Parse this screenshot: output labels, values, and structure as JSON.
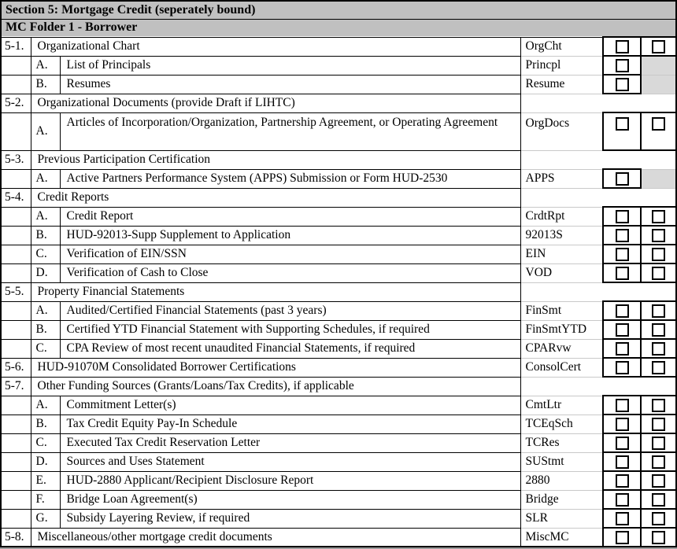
{
  "page": {
    "section_header": "Section 5: Mortgage Credit (seperately bound)",
    "folder_header": "MC Folder 1 - Borrower"
  },
  "colors": {
    "header_bg": "#C0C0C0",
    "shaded_cell": "#D9D9D9",
    "faint_gridline": "#C9C9C9",
    "border": "#000000"
  },
  "checkbox_legend": {
    "box": "empty checkbox present",
    "shaded": "gray shaded cell, no checkbox"
  },
  "rows": [
    {
      "id": "5-1",
      "type": "item",
      "num": "5-1.",
      "desc": "Organizational Chart",
      "code": "OrgCht",
      "checks": [
        "box",
        "box"
      ]
    },
    {
      "id": "5-1-A",
      "type": "sub",
      "letter": "A.",
      "desc": "List of Principals",
      "code": "Princpl",
      "checks": [
        "box",
        "shaded"
      ]
    },
    {
      "id": "5-1-B",
      "type": "sub",
      "letter": "B.",
      "desc": "Resumes",
      "code": "Resume",
      "checks": [
        "box",
        "shaded"
      ]
    },
    {
      "id": "5-2",
      "type": "section",
      "num": "5-2.",
      "desc": "Organizational Documents (provide Draft if LIHTC)"
    },
    {
      "id": "5-2-A",
      "type": "sub",
      "tall": true,
      "letter": "A.",
      "desc": "Articles of Incorporation/Organization, Partnership Agreement, or Operating Agreement",
      "code": "OrgDocs",
      "checks": [
        "box",
        "box"
      ]
    },
    {
      "id": "5-3",
      "type": "section",
      "num": "5-3.",
      "desc": "Previous Participation Certification"
    },
    {
      "id": "5-3-A",
      "type": "sub",
      "letter": "A.",
      "desc": "Active Partners Performance System (APPS) Submission or Form HUD-2530",
      "code": "APPS",
      "checks": [
        "box",
        "shaded"
      ]
    },
    {
      "id": "5-4",
      "type": "section",
      "num": "5-4.",
      "desc": "Credit Reports"
    },
    {
      "id": "5-4-A",
      "type": "sub",
      "letter": "A.",
      "desc": "Credit Report",
      "code": "CrdtRpt",
      "checks": [
        "box",
        "box"
      ]
    },
    {
      "id": "5-4-B",
      "type": "sub",
      "letter": "B.",
      "desc": "HUD-92013-Supp Supplement to Application",
      "code": "92013S",
      "checks": [
        "box",
        "box"
      ]
    },
    {
      "id": "5-4-C",
      "type": "sub",
      "letter": "C.",
      "desc": "Verification of EIN/SSN",
      "code": "EIN",
      "checks": [
        "box",
        "box"
      ]
    },
    {
      "id": "5-4-D",
      "type": "sub",
      "letter": "D.",
      "desc": "Verification of Cash to Close",
      "code": "VOD",
      "checks": [
        "box",
        "box"
      ]
    },
    {
      "id": "5-5",
      "type": "section",
      "num": "5-5.",
      "desc": "Property Financial Statements"
    },
    {
      "id": "5-5-A",
      "type": "sub",
      "letter": "A.",
      "desc": "Audited/Certified Financial Statements (past 3 years)",
      "code": "FinSmt",
      "checks": [
        "box",
        "box"
      ]
    },
    {
      "id": "5-5-B",
      "type": "sub",
      "letter": "B.",
      "desc": "Certified YTD Financial Statement with Supporting Schedules, if required",
      "code": "FinSmtYTD",
      "checks": [
        "box",
        "box"
      ]
    },
    {
      "id": "5-5-C",
      "type": "sub",
      "letter": "C.",
      "desc": "CPA Review of most recent unaudited Financial Statements, if required",
      "code": "CPARvw",
      "checks": [
        "box",
        "box"
      ]
    },
    {
      "id": "5-6",
      "type": "item",
      "num": "5-6.",
      "desc": "HUD-91070M Consolidated Borrower Certifications",
      "code": "ConsolCert",
      "checks": [
        "box",
        "box"
      ]
    },
    {
      "id": "5-7",
      "type": "section",
      "num": "5-7.",
      "desc": "Other Funding Sources (Grants/Loans/Tax Credits), if applicable"
    },
    {
      "id": "5-7-A",
      "type": "sub",
      "letter": "A.",
      "desc": "Commitment Letter(s)",
      "code": "CmtLtr",
      "checks": [
        "box",
        "box"
      ]
    },
    {
      "id": "5-7-B",
      "type": "sub",
      "letter": "B.",
      "desc": "Tax Credit Equity Pay-In Schedule",
      "code": "TCEqSch",
      "checks": [
        "box",
        "box"
      ]
    },
    {
      "id": "5-7-C",
      "type": "sub",
      "letter": "C.",
      "desc": "Executed Tax Credit Reservation Letter",
      "code": "TCRes",
      "checks": [
        "box",
        "box"
      ]
    },
    {
      "id": "5-7-D",
      "type": "sub",
      "letter": "D.",
      "desc": "Sources and Uses Statement",
      "code": "SUStmt",
      "checks": [
        "box",
        "box"
      ]
    },
    {
      "id": "5-7-E",
      "type": "sub",
      "letter": "E.",
      "desc": "HUD-2880 Applicant/Recipient Disclosure Report",
      "code": "2880",
      "checks": [
        "box",
        "box"
      ]
    },
    {
      "id": "5-7-F",
      "type": "sub",
      "letter": "F.",
      "desc": "Bridge Loan Agreement(s)",
      "code": "Bridge",
      "checks": [
        "box",
        "box"
      ]
    },
    {
      "id": "5-7-G",
      "type": "sub",
      "letter": "G.",
      "desc": "Subsidy Layering Review, if required",
      "code": "SLR",
      "checks": [
        "box",
        "box"
      ]
    },
    {
      "id": "5-8",
      "type": "item",
      "num": "5-8.",
      "desc": "Miscellaneous/other mortgage credit documents",
      "code": "MiscMC",
      "checks": [
        "box",
        "box"
      ]
    }
  ]
}
